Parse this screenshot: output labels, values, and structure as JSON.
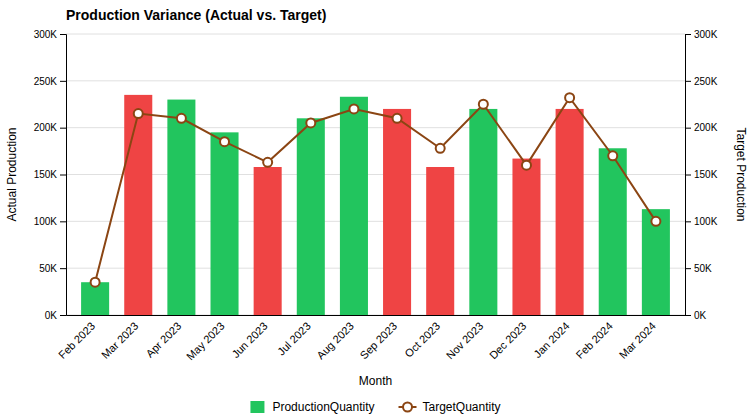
{
  "chart_data": {
    "type": "bar",
    "title": "Production Variance (Actual vs. Target)",
    "xlabel": "Month",
    "ylabel": "Actual Production",
    "y2label": "Target Production",
    "categories": [
      "Feb 2023",
      "Mar 2023",
      "Apr 2023",
      "May 2023",
      "Jun 2023",
      "Jul 2023",
      "Aug 2023",
      "Sep 2023",
      "Oct 2023",
      "Nov 2023",
      "Dec 2023",
      "Jan 2024",
      "Feb 2024",
      "Mar 2024"
    ],
    "series": [
      {
        "name": "ProductionQuantity",
        "type": "bar",
        "color": "#22C55E",
        "colors": [
          "#22C55E",
          "#EF4444",
          "#22C55E",
          "#22C55E",
          "#EF4444",
          "#22C55E",
          "#22C55E",
          "#EF4444",
          "#EF4444",
          "#22C55E",
          "#EF4444",
          "#EF4444",
          "#22C55E",
          "#22C55E"
        ],
        "values": [
          35000,
          235000,
          230000,
          195000,
          158000,
          210000,
          233000,
          220000,
          158000,
          220000,
          167000,
          220000,
          178000,
          113000
        ]
      },
      {
        "name": "TargetQuantity",
        "type": "line",
        "color": "#8B4513",
        "marker": "circle",
        "axis": "y2",
        "values": [
          35000,
          215000,
          210000,
          185000,
          163000,
          205000,
          220000,
          210000,
          178000,
          225000,
          160000,
          232000,
          170000,
          100000
        ]
      }
    ],
    "ylim": [
      0,
      300000
    ],
    "yticks": [
      {
        "value": 0,
        "label": "0K"
      },
      {
        "value": 50000,
        "label": "50K"
      },
      {
        "value": 100000,
        "label": "100K"
      },
      {
        "value": 150000,
        "label": "150K"
      },
      {
        "value": 200000,
        "label": "200K"
      },
      {
        "value": 250000,
        "label": "250K"
      },
      {
        "value": 300000,
        "label": "300K"
      }
    ],
    "y2lim": [
      0,
      300000
    ],
    "y2ticks": [
      {
        "value": 0,
        "label": "0K"
      },
      {
        "value": 50000,
        "label": "50K"
      },
      {
        "value": 100000,
        "label": "100K"
      },
      {
        "value": 150000,
        "label": "150K"
      },
      {
        "value": 200000,
        "label": "200K"
      },
      {
        "value": 250000,
        "label": "250K"
      },
      {
        "value": 300000,
        "label": "300K"
      }
    ],
    "grid": true,
    "legend": "bottom"
  }
}
